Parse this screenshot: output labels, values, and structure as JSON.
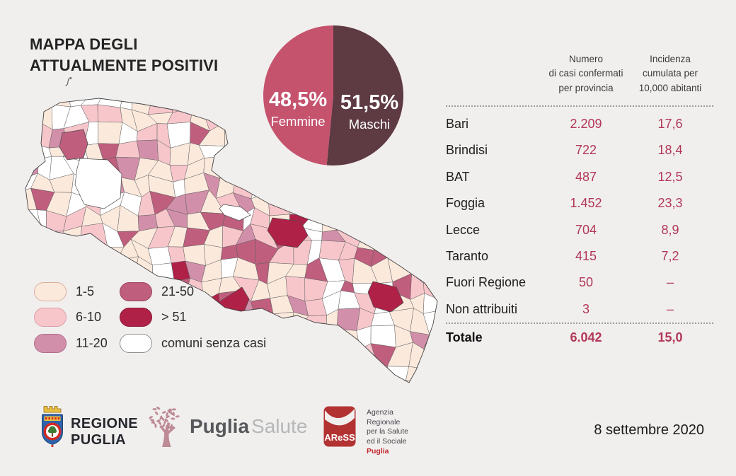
{
  "title": {
    "line1": "MAPPA DEGLI",
    "line2": "ATTUALMENTE POSITIVI"
  },
  "date_label": "8 settembre 2020",
  "chart_data": [
    {
      "id": "gender-pie",
      "type": "pie",
      "start": "top",
      "direction": "clockwise",
      "text_color": "#ffffff",
      "slices": [
        {
          "label": "Femmine",
          "value": 48.5,
          "value_label": "48,5%",
          "color": "#c5536e"
        },
        {
          "label": "Maschi",
          "value": 51.5,
          "value_label": "51,5%",
          "color": "#5e3a43"
        }
      ]
    },
    {
      "id": "province-table",
      "type": "table",
      "header_col1_lines": [
        "Numero",
        "di casi confermati",
        "per provincia"
      ],
      "header_col2_lines": [
        "Incidenza",
        "cumulata per",
        "10,000 abitanti"
      ],
      "rows": [
        [
          "Bari",
          "2.209",
          "17,6"
        ],
        [
          "Brindisi",
          "722",
          "18,4"
        ],
        [
          "BAT",
          "487",
          "12,5"
        ],
        [
          "Foggia",
          "1.452",
          "23,3"
        ],
        [
          "Lecce",
          "704",
          "8,9"
        ],
        [
          "Taranto",
          "415",
          "7,2"
        ],
        [
          "Fuori Regione",
          "50",
          "–"
        ],
        [
          "Non attribuiti",
          "3",
          "–"
        ]
      ],
      "total_row": [
        "Totale",
        "6.042",
        "15,0"
      ],
      "value_color": "#b23758"
    },
    {
      "id": "puglia-map",
      "type": "choropleth",
      "region": "Puglia",
      "legend": [
        {
          "label": "1-5",
          "fill": "#fbe9dc",
          "border": "#d9af9b"
        },
        {
          "label": "6-10",
          "fill": "#f7c6cb",
          "border": "#dd9da8"
        },
        {
          "label": "11-20",
          "fill": "#d18fa9",
          "border": "#b06d8a"
        },
        {
          "label": "21-50",
          "fill": "#c05e7e",
          "border": "#9c4563"
        },
        {
          "label": "> 51",
          "fill": "#b02148",
          "border": "#8a1836"
        },
        {
          "label": "comuni senza casi",
          "fill": "#ffffff",
          "border": "#8f8f8f"
        }
      ]
    }
  ],
  "footer": {
    "regione_line1": "REGIONE",
    "regione_line2": "PUGLIA",
    "salute_bold": "Puglia",
    "salute_light": "Salute",
    "aress_acronym": "AReSS",
    "aress_lines": [
      "Agenzia",
      "Regionale",
      "per la Salute",
      "ed il Sociale"
    ],
    "aress_region": "Puglia"
  }
}
